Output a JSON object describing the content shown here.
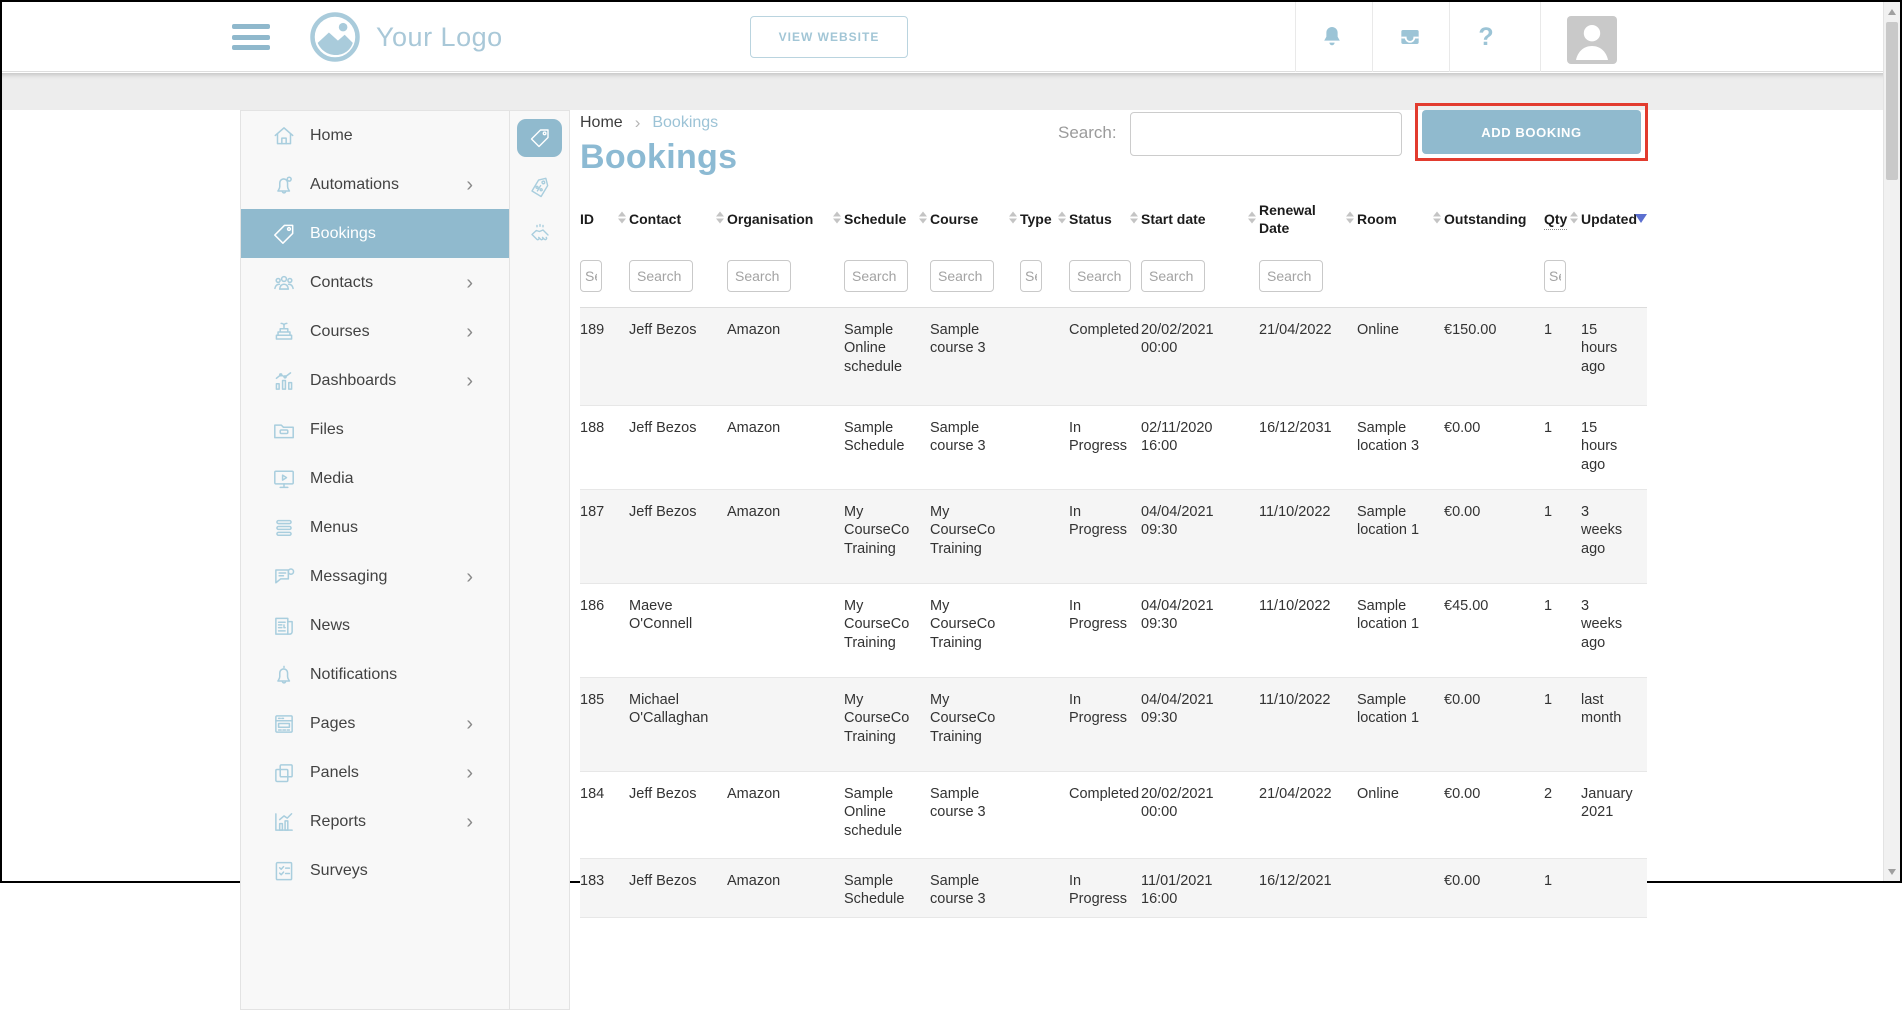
{
  "colors": {
    "accent": "#90bace",
    "accent_light": "#a9cede",
    "highlight_red": "#e23b2e",
    "row_alt": "#f5f5f5",
    "sort_active": "#5b6fd0"
  },
  "header": {
    "logo_text": "Your Logo",
    "view_website_label": "VIEW WEBSITE",
    "icons": [
      "hamburger-menu-icon",
      "logo-image-icon",
      "bell-icon",
      "inbox-icon",
      "help-icon",
      "user-avatar"
    ],
    "help_glyph": "?"
  },
  "sidebar": {
    "items": [
      {
        "label": "Home",
        "icon": "home-icon",
        "chevron": false,
        "active": false
      },
      {
        "label": "Automations",
        "icon": "automation-bell-icon",
        "chevron": true,
        "active": false
      },
      {
        "label": "Bookings",
        "icon": "tag-icon",
        "chevron": false,
        "active": true
      },
      {
        "label": "Contacts",
        "icon": "contacts-icon",
        "chevron": true,
        "active": false
      },
      {
        "label": "Courses",
        "icon": "courses-icon",
        "chevron": true,
        "active": false
      },
      {
        "label": "Dashboards",
        "icon": "dashboards-icon",
        "chevron": true,
        "active": false
      },
      {
        "label": "Files",
        "icon": "folder-icon",
        "chevron": false,
        "active": false
      },
      {
        "label": "Media",
        "icon": "media-monitor-icon",
        "chevron": false,
        "active": false
      },
      {
        "label": "Menus",
        "icon": "menus-icon",
        "chevron": false,
        "active": false
      },
      {
        "label": "Messaging",
        "icon": "messaging-icon",
        "chevron": true,
        "active": false
      },
      {
        "label": "News",
        "icon": "news-icon",
        "chevron": false,
        "active": false
      },
      {
        "label": "Notifications",
        "icon": "notification-bell-icon",
        "chevron": false,
        "active": false
      },
      {
        "label": "Pages",
        "icon": "pages-icon",
        "chevron": true,
        "active": false
      },
      {
        "label": "Panels",
        "icon": "panels-icon",
        "chevron": true,
        "active": false
      },
      {
        "label": "Reports",
        "icon": "reports-icon",
        "chevron": true,
        "active": false
      },
      {
        "label": "Surveys",
        "icon": "surveys-icon",
        "chevron": false,
        "active": false
      }
    ],
    "quick_icons": [
      "bookings-tag-icon",
      "discount-tag-icon",
      "handshake-icon"
    ]
  },
  "page": {
    "breadcrumb": {
      "home": "Home",
      "current": "Bookings"
    },
    "title": "Bookings",
    "search_label": "Search:",
    "search_value": "",
    "add_booking_label": "ADD BOOKING"
  },
  "table": {
    "filter_placeholder": "Search",
    "columns": [
      {
        "label": "ID",
        "sortable": true,
        "filter": "narrow",
        "underline": false,
        "sort_active": false
      },
      {
        "label": "Contact",
        "sortable": true,
        "filter": "normal",
        "underline": false,
        "sort_active": false
      },
      {
        "label": "Organisation",
        "sortable": true,
        "filter": "normal",
        "underline": false,
        "sort_active": false
      },
      {
        "label": "Schedule",
        "sortable": true,
        "filter": "normal",
        "underline": false,
        "sort_active": false
      },
      {
        "label": "Course",
        "sortable": true,
        "filter": "normal",
        "underline": false,
        "sort_active": false
      },
      {
        "label": "Type",
        "sortable": true,
        "filter": "narrow",
        "underline": false,
        "sort_active": false
      },
      {
        "label": "Status",
        "sortable": true,
        "filter": "normal",
        "underline": false,
        "sort_active": false
      },
      {
        "label": "Start date",
        "sortable": true,
        "filter": "normal",
        "underline": false,
        "sort_active": false
      },
      {
        "label": "Renewal Date",
        "sortable": true,
        "filter": "normal",
        "underline": false,
        "sort_active": false
      },
      {
        "label": "Room",
        "sortable": true,
        "filter": null,
        "underline": false,
        "sort_active": false
      },
      {
        "label": "Outstanding",
        "sortable": false,
        "filter": null,
        "underline": false,
        "sort_active": false
      },
      {
        "label": "Qty",
        "sortable": true,
        "filter": "narrow",
        "underline": true,
        "sort_active": false
      },
      {
        "label": "Updated",
        "sortable": false,
        "filter": null,
        "underline": false,
        "sort_active": true
      }
    ],
    "rows": [
      [
        "189",
        "Jeff Bezos",
        "Amazon",
        "Sample Online schedule",
        "Sample course 3",
        "",
        "Completed",
        "20/02/2021 00:00",
        "21/04/2022",
        "Online",
        "€150.00",
        "1",
        "15 hours ago"
      ],
      [
        "188",
        "Jeff Bezos",
        "Amazon",
        "Sample Schedule",
        "Sample course 3",
        "",
        "In Progress",
        "02/11/2020 16:00",
        "16/12/2031",
        "Sample location 3",
        "€0.00",
        "1",
        "15 hours ago"
      ],
      [
        "187",
        "Jeff Bezos",
        "Amazon",
        "My CourseCo Training",
        "My CourseCo Training",
        "",
        "In Progress",
        "04/04/2021 09:30",
        "11/10/2022",
        "Sample location 1",
        "€0.00",
        "1",
        "3 weeks ago"
      ],
      [
        "186",
        "Maeve O'Connell",
        "",
        "My CourseCo Training",
        "My CourseCo Training",
        "",
        "In Progress",
        "04/04/2021 09:30",
        "11/10/2022",
        "Sample location 1",
        "€45.00",
        "1",
        "3 weeks ago"
      ],
      [
        "185",
        "Michael O'Callaghan",
        "",
        "My CourseCo Training",
        "My CourseCo Training",
        "",
        "In Progress",
        "04/04/2021 09:30",
        "11/10/2022",
        "Sample location 1",
        "€0.00",
        "1",
        "last month"
      ],
      [
        "184",
        "Jeff Bezos",
        "Amazon",
        "Sample Online schedule",
        "Sample course 3",
        "",
        "Completed",
        "20/02/2021 00:00",
        "21/04/2022",
        "Online",
        "€0.00",
        "2",
        "January 2021"
      ],
      [
        "183",
        "Jeff Bezos",
        "Amazon",
        "Sample Schedule",
        "Sample course 3",
        "",
        "In Progress",
        "11/01/2021 16:00",
        "16/12/2021",
        "",
        "€0.00",
        "1",
        ""
      ]
    ]
  }
}
